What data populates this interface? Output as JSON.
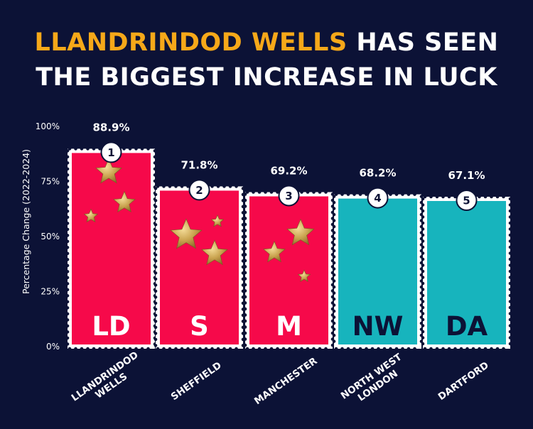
{
  "title": {
    "highlight": "LLANDRINDOD WELLS",
    "line1_rest": " HAS SEEN",
    "line2": "THE BIGGEST INCREASE IN LUCK"
  },
  "colors": {
    "background": "#0c1236",
    "highlight": "#f6a819",
    "red_bar": "#f6094a",
    "teal_bar": "#17b4bd",
    "star": "#c9a34f"
  },
  "chart_data": {
    "type": "bar",
    "ylabel": "Percentage Change (2022-2024)",
    "ylim": [
      0,
      100
    ],
    "yticks": [
      "0%",
      "25%",
      "50%",
      "75%",
      "100%"
    ],
    "grid": false,
    "categories": [
      {
        "name": [
          "LLANDRINDOD",
          "WELLS"
        ],
        "abbr": "LD",
        "rank": "1",
        "value": 88.9,
        "label": "88.9%",
        "color": "red",
        "stars": 3
      },
      {
        "name": [
          "SHEFFIELD"
        ],
        "abbr": "S",
        "rank": "2",
        "value": 71.8,
        "label": "71.8%",
        "color": "red",
        "stars": 3
      },
      {
        "name": [
          "MANCHESTER"
        ],
        "abbr": "M",
        "rank": "3",
        "value": 69.2,
        "label": "69.2%",
        "color": "red",
        "stars": 3
      },
      {
        "name": [
          "NORTH WEST",
          "LONDON"
        ],
        "abbr": "NW",
        "rank": "4",
        "value": 68.2,
        "label": "68.2%",
        "color": "teal",
        "stars": 0
      },
      {
        "name": [
          "DARTFORD"
        ],
        "abbr": "DA",
        "rank": "5",
        "value": 67.1,
        "label": "67.1%",
        "color": "teal",
        "stars": 0
      }
    ]
  }
}
